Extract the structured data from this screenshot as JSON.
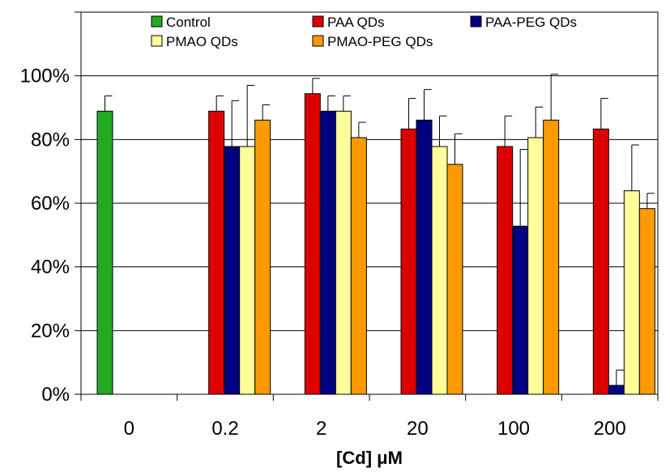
{
  "chart_data": {
    "type": "bar",
    "categories": [
      "0",
      "0.2",
      "2",
      "20",
      "100",
      "200"
    ],
    "xlabel": "[Cd] μM",
    "ylabel": "",
    "ylim": [
      0,
      100
    ],
    "yticks": [
      "0%",
      "20%",
      "40%",
      "60%",
      "80%",
      "100%"
    ],
    "grid": "horizontal",
    "legend": "top",
    "series": [
      {
        "name": "Control",
        "color": "#22aa22",
        "values": [
          88.9,
          0,
          0,
          0,
          0,
          0
        ],
        "errors": [
          4.8,
          0,
          0,
          0,
          0,
          0
        ]
      },
      {
        "name": "PAA QDs",
        "color": "#dd0000",
        "values": [
          0,
          88.9,
          94.4,
          83.3,
          77.8,
          83.3
        ],
        "errors": [
          0,
          4.8,
          4.8,
          9.6,
          9.6,
          9.6
        ]
      },
      {
        "name": "PAA-PEG QDs",
        "color": "#000080",
        "values": [
          0,
          77.8,
          88.9,
          86.1,
          52.8,
          2.8
        ],
        "errors": [
          0,
          14.4,
          4.8,
          9.6,
          24.1,
          4.8
        ]
      },
      {
        "name": "PMAO QDs",
        "color": "#ffff99",
        "values": [
          0,
          77.8,
          88.9,
          77.8,
          80.6,
          63.9
        ],
        "errors": [
          0,
          19.2,
          4.8,
          9.6,
          9.6,
          14.4
        ]
      },
      {
        "name": "PMAO-PEG QDs",
        "color": "#ff9900",
        "values": [
          0,
          86.1,
          80.6,
          72.2,
          86.1,
          58.3
        ],
        "errors": [
          0,
          4.8,
          4.8,
          9.6,
          14.4,
          4.8
        ]
      }
    ]
  }
}
